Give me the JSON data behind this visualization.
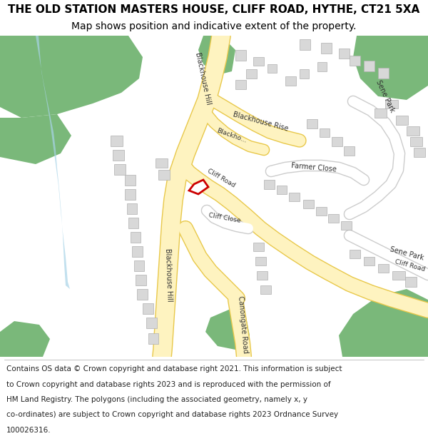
{
  "title_line1": "THE OLD STATION MASTERS HOUSE, CLIFF ROAD, HYTHE, CT21 5XA",
  "title_line2": "Map shows position and indicative extent of the property.",
  "footer_lines": [
    "Contains OS data © Crown copyright and database right 2021. This information is subject",
    "to Crown copyright and database rights 2023 and is reproduced with the permission of",
    "HM Land Registry. The polygons (including the associated geometry, namely x, y",
    "co-ordinates) are subject to Crown copyright and database rights 2023 Ordnance Survey",
    "100026316."
  ],
  "bg_color": "#ffffff",
  "map_bg": "#f8f8f8",
  "road_fill": "#fef3c0",
  "road_stroke": "#e8c84a",
  "building_fill": "#d8d8d8",
  "building_stroke": "#b0b0b0",
  "green_fill": "#7ab87a",
  "water_fill": "#a8d4e8",
  "highlight_stroke": "#cc0000",
  "highlight_fill": "#ffffff",
  "title_fontsize": 11,
  "subtitle_fontsize": 10,
  "footer_fontsize": 7.5,
  "road_label_fontsize": 7,
  "figsize": [
    6.0,
    6.25
  ],
  "dpi": 100
}
